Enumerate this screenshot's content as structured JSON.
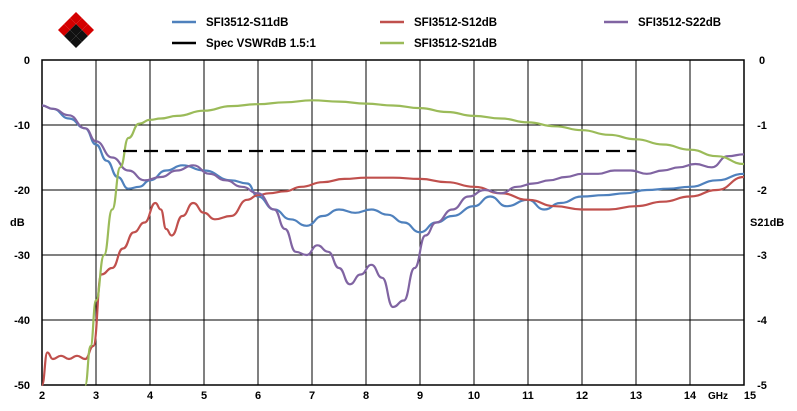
{
  "chart_data": {
    "type": "line",
    "title": "",
    "xlabel": "GHz",
    "ylabel": "dB",
    "y2label": "S21dB",
    "xlim": [
      2,
      15
    ],
    "ylim": [
      -50,
      0
    ],
    "y2lim": [
      -5,
      0
    ],
    "x_ticks": [
      "2",
      "3",
      "4",
      "5",
      "6",
      "7",
      "8",
      "9",
      "10",
      "11",
      "12",
      "13",
      "14",
      "15"
    ],
    "y_ticks": [
      "0",
      "-10",
      "-20",
      "-30",
      "-40",
      "-50"
    ],
    "y2_ticks": [
      "0",
      "-1",
      "-2",
      "-3",
      "-4",
      "-5"
    ],
    "grid": true,
    "legend_position": "top",
    "colors": {
      "s11": "#4f81bd",
      "s12": "#c0504d",
      "s22": "#8064a2",
      "s21": "#9bbb59",
      "spec": "#000000",
      "logo": "#cc0000"
    },
    "series": [
      {
        "name": "SFI3512-S11dB",
        "axis": "left",
        "x": [
          2.0,
          2.2,
          2.5,
          2.8,
          3.0,
          3.2,
          3.4,
          3.6,
          3.8,
          4.0,
          4.3,
          4.6,
          5.0,
          5.5,
          5.8,
          6.0,
          6.3,
          6.6,
          6.9,
          7.2,
          7.5,
          7.8,
          8.1,
          8.4,
          8.7,
          9.0,
          9.3,
          9.6,
          10.0,
          10.3,
          10.6,
          11.0,
          11.3,
          11.6,
          12.0,
          12.4,
          12.8,
          13.2,
          13.6,
          14.0,
          14.5,
          15.0
        ],
        "y": [
          -7,
          -7.5,
          -9,
          -10.5,
          -13,
          -15.5,
          -18,
          -19.8,
          -19.5,
          -18.5,
          -17,
          -16.2,
          -17,
          -18.5,
          -19,
          -21,
          -23,
          -24.5,
          -25.5,
          -24,
          -23,
          -23.5,
          -23,
          -23.8,
          -25,
          -26.5,
          -25,
          -24,
          -22.5,
          -21,
          -22.5,
          -21.5,
          -23,
          -22,
          -21,
          -20.8,
          -20.5,
          -20,
          -19.8,
          -19.5,
          -18.5,
          -17.5
        ]
      },
      {
        "name": "SFI3512-S12dB",
        "axis": "left",
        "x": [
          2.0,
          2.1,
          2.2,
          2.35,
          2.5,
          2.65,
          2.8,
          2.95,
          3.1,
          3.3,
          3.5,
          3.7,
          3.9,
          4.1,
          4.2,
          4.3,
          4.4,
          4.6,
          4.8,
          5.0,
          5.2,
          5.5,
          5.8,
          6.0,
          6.2,
          6.5,
          6.8,
          7.2,
          7.6,
          8.0,
          8.5,
          9.0,
          9.5,
          10.0,
          10.5,
          11.0,
          11.5,
          12.0,
          12.5,
          13.0,
          13.5,
          14.0,
          14.5,
          15.0
        ],
        "y": [
          -50,
          -45,
          -46,
          -45.5,
          -46,
          -45.5,
          -46,
          -44,
          -33,
          -32,
          -29,
          -26.5,
          -25,
          -22,
          -23,
          -26,
          -27,
          -24,
          -22,
          -23.5,
          -24.5,
          -24,
          -21.5,
          -20.8,
          -20.5,
          -20.2,
          -19.5,
          -18.8,
          -18.3,
          -18.1,
          -18.1,
          -18.3,
          -18.8,
          -19.5,
          -20.5,
          -21.5,
          -22.5,
          -23,
          -23,
          -22.5,
          -21.8,
          -21,
          -20,
          -18
        ]
      },
      {
        "name": "SFI3512-S22dB",
        "axis": "left",
        "x": [
          2.0,
          2.2,
          2.5,
          2.8,
          3.0,
          3.3,
          3.6,
          3.9,
          4.2,
          4.5,
          4.8,
          5.1,
          5.4,
          5.7,
          6.0,
          6.3,
          6.5,
          6.7,
          6.9,
          7.1,
          7.3,
          7.5,
          7.7,
          7.9,
          8.1,
          8.3,
          8.5,
          8.7,
          8.9,
          9.1,
          9.3,
          9.6,
          9.9,
          10.2,
          10.5,
          10.8,
          11.1,
          11.4,
          11.7,
          12.0,
          12.3,
          12.6,
          12.9,
          13.2,
          13.5,
          13.8,
          14.1,
          14.4,
          14.7,
          15.0
        ],
        "y": [
          -7,
          -7.5,
          -8.5,
          -10.5,
          -12.5,
          -15,
          -17,
          -18.5,
          -18,
          -17,
          -16.2,
          -17.5,
          -18.5,
          -19.5,
          -20.5,
          -23,
          -26,
          -29.5,
          -30,
          -28.5,
          -29.5,
          -32,
          -34.5,
          -33,
          -31.5,
          -33.5,
          -38,
          -37,
          -32,
          -27,
          -25,
          -23,
          -21,
          -20,
          -20.5,
          -19.5,
          -19,
          -18.5,
          -18,
          -17.5,
          -17.5,
          -17,
          -17,
          -17.5,
          -17,
          -16.5,
          -16,
          -16.5,
          -14.8,
          -14.5
        ]
      },
      {
        "name": "SFI3512-S21dB",
        "axis": "right",
        "x": [
          2.8,
          2.9,
          3.0,
          3.15,
          3.3,
          3.45,
          3.6,
          3.8,
          4.0,
          4.2,
          4.5,
          5.0,
          5.5,
          6.0,
          6.5,
          7.0,
          7.5,
          8.0,
          8.5,
          9.0,
          9.5,
          10.0,
          10.5,
          11.0,
          11.5,
          12.0,
          12.5,
          13.0,
          13.5,
          14.0,
          14.5,
          15.0
        ],
        "y": [
          -5,
          -4.4,
          -3.7,
          -3.0,
          -2.3,
          -1.65,
          -1.2,
          -0.98,
          -0.92,
          -0.9,
          -0.86,
          -0.78,
          -0.71,
          -0.68,
          -0.65,
          -0.62,
          -0.64,
          -0.67,
          -0.7,
          -0.74,
          -0.8,
          -0.86,
          -0.9,
          -0.96,
          -1.02,
          -1.08,
          -1.15,
          -1.22,
          -1.3,
          -1.38,
          -1.48,
          -1.6
        ]
      },
      {
        "name": "Spec VSWRdB 1.5:1",
        "axis": "left",
        "style": "dashed",
        "x": [
          3.5,
          13.0
        ],
        "y": [
          -14,
          -14
        ]
      }
    ]
  }
}
